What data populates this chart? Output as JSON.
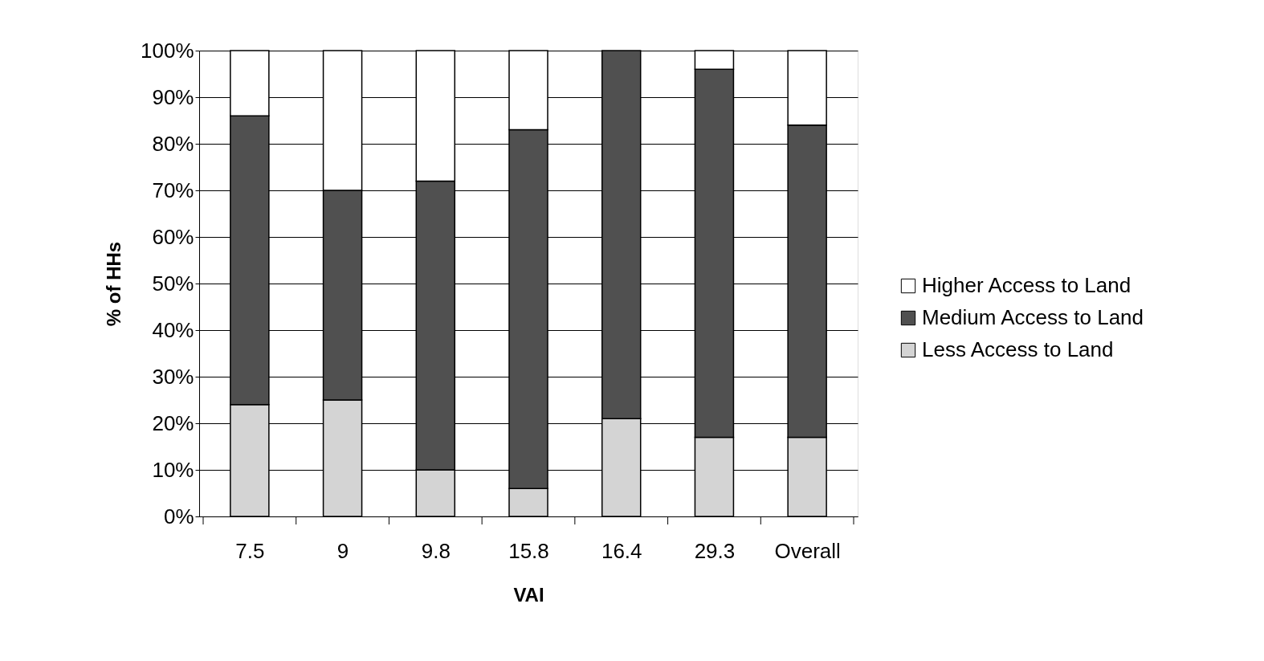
{
  "chart_data": {
    "type": "bar",
    "stacked": true,
    "xlabel": "VAI",
    "ylabel": "% of HHs",
    "categories": [
      "7.5",
      "9",
      "9.8",
      "15.8",
      "16.4",
      "29.3",
      "Overall"
    ],
    "series": [
      {
        "name": "Less Access to Land",
        "color": "#d4d4d4",
        "values": [
          24,
          25,
          10,
          6,
          21,
          17,
          17
        ]
      },
      {
        "name": "Medium Access to Land",
        "color": "#505050",
        "values": [
          62,
          45,
          62,
          77,
          79,
          79,
          67
        ]
      },
      {
        "name": "Higher Access to Land",
        "color": "#ffffff",
        "values": [
          14,
          30,
          28,
          17,
          0,
          4,
          16
        ]
      }
    ],
    "ylim": [
      0,
      100
    ],
    "yticks": [
      {
        "value": 0,
        "label": "0%"
      },
      {
        "value": 10,
        "label": "10%"
      },
      {
        "value": 20,
        "label": "20%"
      },
      {
        "value": 30,
        "label": "30%"
      },
      {
        "value": 40,
        "label": "40%"
      },
      {
        "value": 50,
        "label": "50%"
      },
      {
        "value": 60,
        "label": "60%"
      },
      {
        "value": 70,
        "label": "70%"
      },
      {
        "value": 80,
        "label": "80%"
      },
      {
        "value": 90,
        "label": "90%"
      },
      {
        "value": 100,
        "label": "100%"
      }
    ],
    "grid": "y",
    "legend": "right"
  }
}
